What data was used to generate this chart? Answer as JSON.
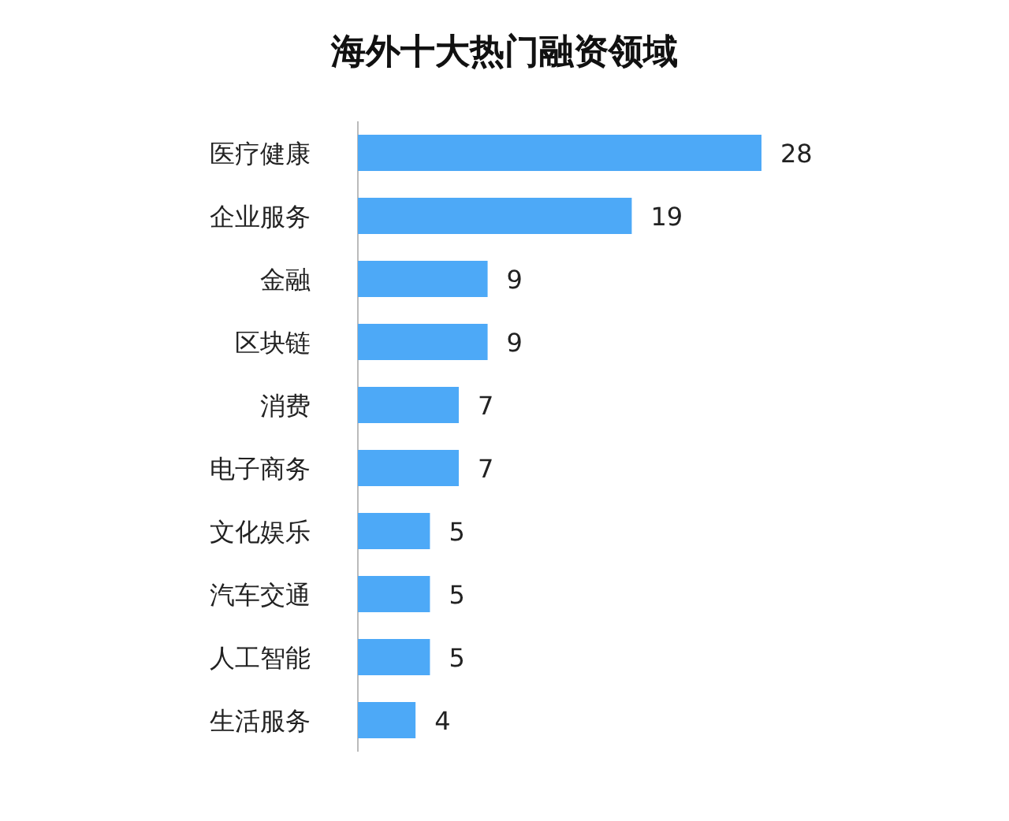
{
  "chart_data": {
    "type": "bar",
    "orientation": "horizontal",
    "title": "海外十大热门融资领域",
    "categories": [
      "医疗健康",
      "企业服务",
      "金融",
      "区块链",
      "消费",
      "电子商务",
      "文化娱乐",
      "汽车交通",
      "人工智能",
      "生活服务"
    ],
    "values": [
      28,
      19,
      9,
      9,
      7,
      7,
      5,
      5,
      5,
      4
    ],
    "color": "#4da9f7",
    "data_labels": true
  }
}
